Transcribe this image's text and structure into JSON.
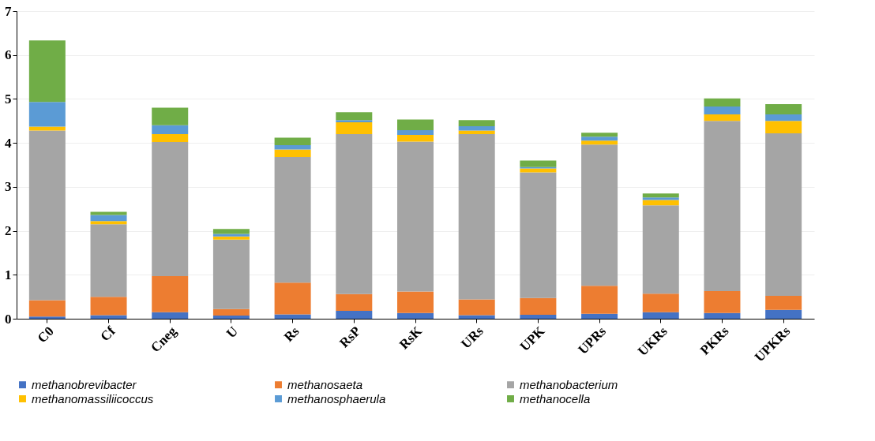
{
  "chart_data": {
    "type": "bar",
    "stacked": true,
    "categories": [
      "C0",
      "Cf",
      "Cneg",
      "U",
      "Rs",
      "RsP",
      "RsK",
      "URs",
      "UPK",
      "UPRs",
      "UKRs",
      "PKRs",
      "UPKRs"
    ],
    "series": [
      {
        "name": "methanobrevibacter",
        "color": "#4472c4",
        "values": [
          0.05,
          0.08,
          0.15,
          0.07,
          0.1,
          0.18,
          0.13,
          0.08,
          0.09,
          0.11,
          0.15,
          0.13,
          0.2
        ]
      },
      {
        "name": "methanosaeta",
        "color": "#ed7d31",
        "values": [
          0.37,
          0.42,
          0.82,
          0.15,
          0.72,
          0.38,
          0.49,
          0.36,
          0.38,
          0.64,
          0.42,
          0.5,
          0.32
        ]
      },
      {
        "name": "methanobacterium",
        "color": "#a5a5a5",
        "values": [
          3.86,
          1.65,
          3.05,
          1.58,
          2.86,
          3.64,
          3.41,
          3.76,
          2.86,
          3.21,
          2.01,
          3.87,
          3.7
        ]
      },
      {
        "name": "methanomassiliicoccus",
        "color": "#ffc000",
        "values": [
          0.09,
          0.07,
          0.18,
          0.07,
          0.17,
          0.27,
          0.15,
          0.08,
          0.09,
          0.09,
          0.12,
          0.15,
          0.28
        ]
      },
      {
        "name": "methanosphaerula",
        "color": "#5b9bd5",
        "values": [
          0.56,
          0.14,
          0.2,
          0.06,
          0.1,
          0.05,
          0.11,
          0.1,
          0.03,
          0.09,
          0.06,
          0.18,
          0.15
        ]
      },
      {
        "name": "methanocella",
        "color": "#70ad47",
        "values": [
          1.4,
          0.07,
          0.4,
          0.11,
          0.17,
          0.18,
          0.24,
          0.14,
          0.15,
          0.09,
          0.09,
          0.18,
          0.23
        ]
      }
    ],
    "ylim": [
      0,
      7
    ],
    "yticks": [
      0,
      1,
      2,
      3,
      4,
      5,
      6,
      7
    ],
    "grid": "y",
    "legend": "bottom"
  }
}
